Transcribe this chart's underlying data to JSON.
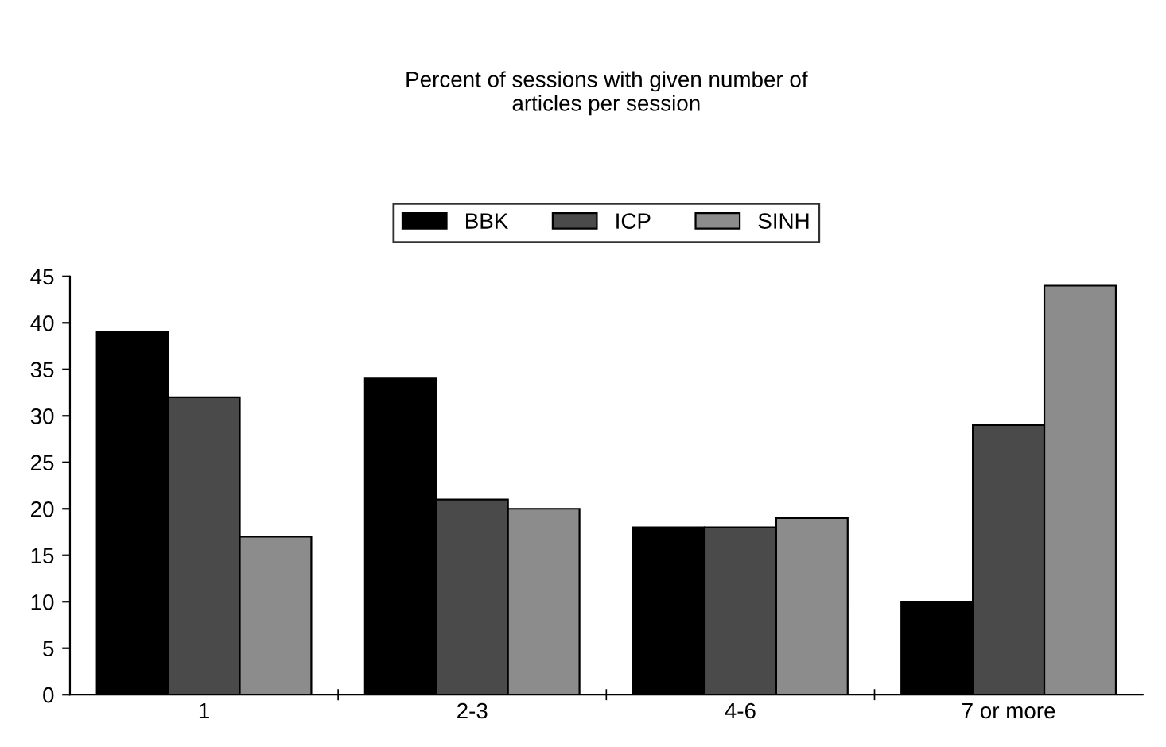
{
  "chart_data": {
    "type": "bar",
    "title": "Percent of sessions with given number of\narticles per session",
    "categories": [
      "1",
      "2-3",
      "4-6",
      "7 or more"
    ],
    "series": [
      {
        "name": "BBK",
        "color": "#000000",
        "values": [
          39,
          34,
          18,
          10
        ]
      },
      {
        "name": "ICP",
        "color": "#4a4a4a",
        "values": [
          32,
          21,
          18,
          29
        ]
      },
      {
        "name": "SINH",
        "color": "#8c8c8c",
        "values": [
          17,
          20,
          19,
          44
        ]
      }
    ],
    "ylim": [
      0,
      45
    ],
    "yticks": [
      0,
      5,
      10,
      15,
      20,
      25,
      30,
      35,
      40,
      45
    ],
    "grid": false,
    "legend": "top"
  }
}
